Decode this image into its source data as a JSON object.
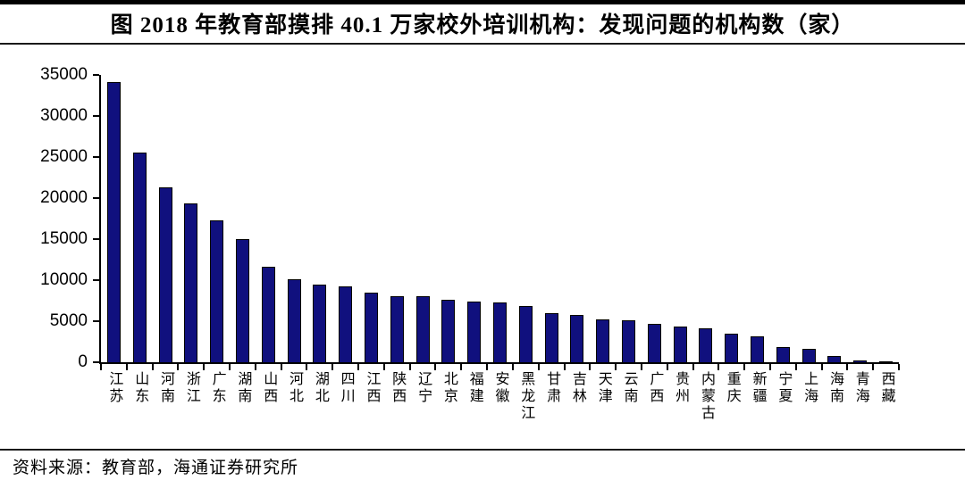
{
  "figure": {
    "title": "图 2018 年教育部摸排 40.1 万家校外培训机构：发现问题的机构数（家）",
    "source": "资料来源：教育部，海通证券研究所"
  },
  "colors": {
    "bar_fill": "#10107E",
    "bar_border": "#000000",
    "axis": "#000000",
    "rule": "#000000",
    "background": "#FFFFFF"
  },
  "chart_data": {
    "type": "bar",
    "title": "2018 年教育部摸排 40.1 万家校外培训机构：发现问题的机构数（家）",
    "xlabel": "",
    "ylabel": "",
    "categories": [
      "江苏",
      "山东",
      "河南",
      "浙江",
      "广东",
      "湖南",
      "山西",
      "河北",
      "湖北",
      "四川",
      "江西",
      "陕西",
      "辽宁",
      "北京",
      "福建",
      "安徽",
      "黑龙江",
      "甘肃",
      "吉林",
      "天津",
      "云南",
      "广西",
      "贵州",
      "内蒙古",
      "重庆",
      "新疆",
      "宁夏",
      "上海",
      "海南",
      "青海",
      "西藏"
    ],
    "values": [
      34100,
      25500,
      21300,
      19400,
      17300,
      15000,
      11600,
      10100,
      9500,
      9200,
      8500,
      8000,
      8000,
      7600,
      7400,
      7300,
      6800,
      6000,
      5800,
      5200,
      5100,
      4700,
      4400,
      4100,
      3500,
      3100,
      1800,
      1600,
      800,
      200,
      100
    ],
    "ylim": [
      0,
      35000
    ],
    "ytick_step": 5000,
    "ytick_labels": [
      "0",
      "5000",
      "10000",
      "15000",
      "20000",
      "25000",
      "30000",
      "35000"
    ],
    "grid": false,
    "legend_position": "none",
    "bar_color": "#10107E"
  }
}
